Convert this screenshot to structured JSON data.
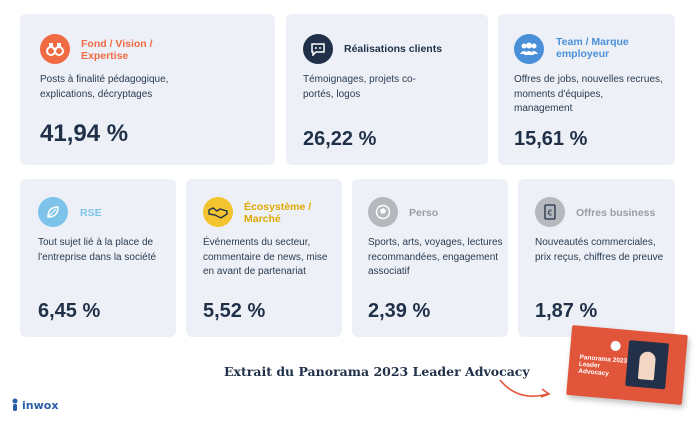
{
  "cards": [
    {
      "title": "Fond / Vision / Expertise",
      "desc": "Posts à finalité pédagogique, explications, décryptages",
      "pct": "41,94 %",
      "icon": "binoculars-icon",
      "color": "#f06a44"
    },
    {
      "title": "Réalisations clients",
      "desc": "Témoignages, projets co-portés, logos",
      "pct": "26,22 %",
      "icon": "speech-bubble-icon",
      "color": "#1f3048"
    },
    {
      "title": "Team / Marque employeur",
      "desc": "Offres de jobs, nouvelles recrues, moments d'équipes, management",
      "pct": "15,61 %",
      "icon": "team-icon",
      "color": "#4a90d9"
    },
    {
      "title": "RSE",
      "desc": "Tout sujet lié à la place de l'entreprise dans la société",
      "pct": "6,45 %",
      "icon": "leaf-icon",
      "color": "#7ec3ea"
    },
    {
      "title": "Écosystème / Marché",
      "desc": "Événements du secteur, commentaire de news, mise en avant de partenariat",
      "pct": "5,52 %",
      "icon": "handshake-icon",
      "color": "#f4c430"
    },
    {
      "title": "Perso",
      "desc": "Sports, arts, voyages, lectures recommandées, engagement associatif",
      "pct": "2,39 %",
      "icon": "ball-icon",
      "color": "#b5b8bd"
    },
    {
      "title": "Offres business",
      "desc": "Nouveautés commerciales, prix reçus, chiffres de preuve",
      "pct": "1,87 %",
      "icon": "money-icon",
      "color": "#b5b8bd"
    }
  ],
  "footer": {
    "caption": "Extrait du Panorama 2023 Leader Advocacy"
  },
  "logo": {
    "text": "inwox"
  },
  "book": {
    "title": "Panorama 2023 Leader Advocacy"
  }
}
